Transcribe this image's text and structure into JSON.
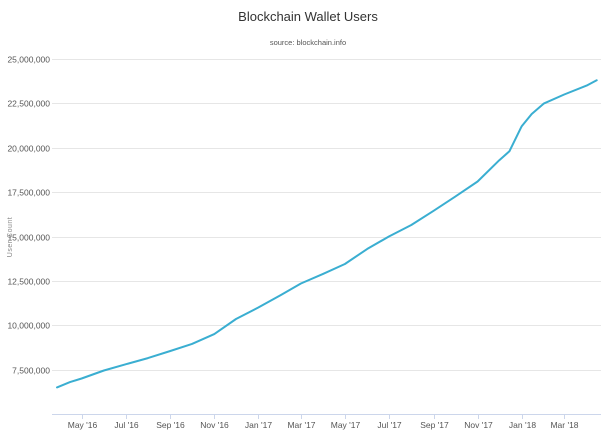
{
  "chart_data": {
    "type": "line",
    "title": "Blockchain Wallet Users",
    "subtitle": "source: blockchain.info",
    "xlabel": "",
    "ylabel": "User Count",
    "ylim": [
      5000000,
      25000000
    ],
    "yticks": [
      7500000,
      10000000,
      12500000,
      15000000,
      17500000,
      20000000,
      22500000,
      25000000
    ],
    "ytick_labels": [
      "7,500,000",
      "10,000,000",
      "12,500,000",
      "15,000,000",
      "17,500,000",
      "20,000,000",
      "22,500,000",
      "25,000,000"
    ],
    "xlim": [
      "2016-03-21",
      "2018-04-21"
    ],
    "xticks": [
      "2016-05-01",
      "2016-07-01",
      "2016-09-01",
      "2016-11-01",
      "2017-01-01",
      "2017-03-01",
      "2017-05-01",
      "2017-07-01",
      "2017-09-01",
      "2017-11-01",
      "2018-01-01",
      "2018-03-01"
    ],
    "xtick_labels": [
      "May '16",
      "Jul '16",
      "Sep '16",
      "Nov '16",
      "Jan '17",
      "Mar '17",
      "May '17",
      "Jul '17",
      "Sep '17",
      "Nov '17",
      "Jan '18",
      "Mar '18"
    ],
    "grid": true,
    "legend": "none",
    "color": "#3aaed1",
    "series": [
      {
        "x": [
          "2016-03-28",
          "2016-04-15",
          "2016-05-01",
          "2016-06-01",
          "2016-07-01",
          "2016-08-01",
          "2016-09-01",
          "2016-10-01",
          "2016-11-01",
          "2016-12-01",
          "2017-01-01",
          "2017-02-01",
          "2017-03-01",
          "2017-04-01",
          "2017-05-01",
          "2017-06-01",
          "2017-07-01",
          "2017-08-01",
          "2017-09-01",
          "2017-10-01",
          "2017-11-01",
          "2017-12-01",
          "2017-12-15",
          "2018-01-01",
          "2018-01-15",
          "2018-02-01",
          "2018-03-01",
          "2018-04-01",
          "2018-04-15"
        ],
        "y": [
          6500000,
          6800000,
          7000000,
          7450000,
          7800000,
          8150000,
          8550000,
          8950000,
          9500000,
          10350000,
          11000000,
          11700000,
          12350000,
          12900000,
          13450000,
          14300000,
          15000000,
          15650000,
          16450000,
          17250000,
          18100000,
          19300000,
          19800000,
          21200000,
          21900000,
          22500000,
          23000000,
          23500000,
          23800000
        ]
      }
    ]
  }
}
